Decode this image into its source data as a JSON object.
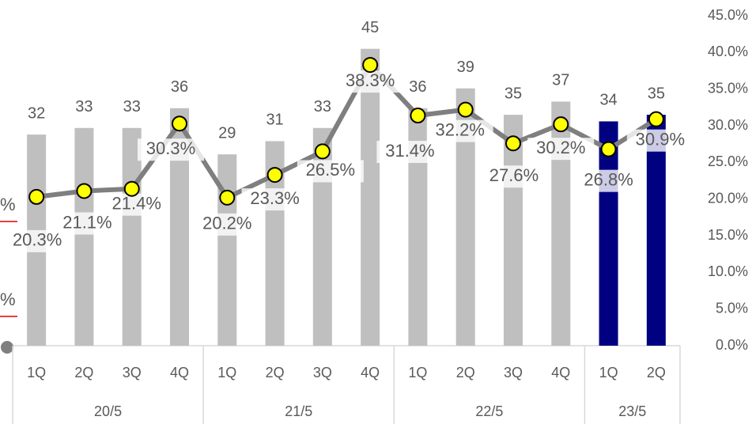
{
  "chart_data": {
    "type": "bar-line",
    "categories": [
      "1Q",
      "2Q",
      "3Q",
      "4Q",
      "1Q",
      "2Q",
      "3Q",
      "4Q",
      "1Q",
      "2Q",
      "3Q",
      "4Q",
      "1Q",
      "2Q"
    ],
    "groups": [
      {
        "label": "20/5",
        "size": 4
      },
      {
        "label": "21/5",
        "size": 4
      },
      {
        "label": "22/5",
        "size": 4
      },
      {
        "label": "23/5",
        "size": 2
      }
    ],
    "series": [
      {
        "type": "bar",
        "color": "#bfbfbf",
        "colors": [
          "#bfbfbf",
          "#bfbfbf",
          "#bfbfbf",
          "#bfbfbf",
          "#bfbfbf",
          "#bfbfbf",
          "#bfbfbf",
          "#bfbfbf",
          "#bfbfbf",
          "#bfbfbf",
          "#bfbfbf",
          "#bfbfbf",
          "#000080",
          "#000080"
        ],
        "values": [
          32,
          33,
          33,
          36,
          29,
          31,
          33,
          45,
          36,
          39,
          35,
          37,
          34,
          35
        ]
      },
      {
        "type": "line",
        "axis": "y2",
        "color": "#7f7f7f",
        "marker_color": "#ffff00",
        "values": [
          20.3,
          21.1,
          21.4,
          30.3,
          20.2,
          23.3,
          26.5,
          38.3,
          31.4,
          32.2,
          27.6,
          30.2,
          26.8,
          30.9
        ],
        "value_labels": [
          "20.3%",
          "21.1%",
          "21.4%",
          "30.3%",
          "20.2%",
          "23.3%",
          "26.5%",
          "38.3%",
          "31.4%",
          "32.2%",
          "27.6%",
          "30.2%",
          "26.8%",
          "30.9%"
        ]
      }
    ],
    "ylim": [
      0,
      50
    ],
    "y2lim": [
      0,
      45
    ],
    "y2ticks": [
      {
        "value": 0,
        "label": "0.0%"
      },
      {
        "value": 5,
        "label": "5.0%"
      },
      {
        "value": 10,
        "label": "10.0%"
      },
      {
        "value": 15,
        "label": "15.0%"
      },
      {
        "value": 20,
        "label": "20.0%"
      },
      {
        "value": 25,
        "label": "25.0%"
      },
      {
        "value": 30,
        "label": "30.0%"
      },
      {
        "value": 35,
        "label": "35.0%"
      },
      {
        "value": 40,
        "label": "40.0%"
      },
      {
        "value": 45,
        "label": "45.0%"
      }
    ],
    "annotations": [
      "%",
      "%"
    ]
  }
}
